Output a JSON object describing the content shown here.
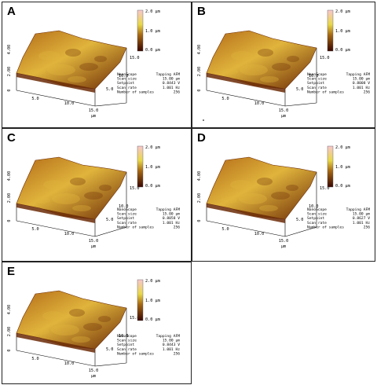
{
  "figure": {
    "panels": [
      {
        "label": "A",
        "colorbar_ticks": [
          "2.0 µm",
          "1.0 µm",
          "0.0 µm"
        ],
        "z_ticks": [
          "4.00",
          "2.00",
          "0"
        ],
        "y_ticks": [
          "15.0",
          "10.0",
          "5.0"
        ],
        "x_ticks": [
          "5.0",
          "10.0",
          "15.0"
        ],
        "x_unit": "µm",
        "info_left": [
          "NanoScope",
          "Scan size",
          "Setpoint",
          "Scan rate",
          "Number of samples"
        ],
        "info_right": [
          "Tapping AFM",
          "15.00 µm",
          "0.8443 V",
          "1.001 Hz",
          "256"
        ]
      },
      {
        "label": "B",
        "colorbar_ticks": [
          "2.0 µm",
          "1.0 µm",
          "0.0 µm"
        ],
        "z_ticks": [
          "4.00",
          "2.00",
          "0"
        ],
        "y_ticks": [
          "15.0",
          "10.0",
          "5.0"
        ],
        "x_ticks": [
          "5.0",
          "10.0",
          "15.0"
        ],
        "x_unit": "µm",
        "info_left": [
          "NanoScope",
          "Scan size",
          "Setpoint",
          "Scan rate",
          "Number of samples"
        ],
        "info_right": [
          "Tapping AFM",
          "15.00 µm",
          "0.8008 V",
          "1.001 Hz",
          "256"
        ]
      },
      {
        "label": "C",
        "colorbar_ticks": [
          "2.0 µm",
          "1.0 µm",
          "0.0 µm"
        ],
        "z_ticks": [
          "4.00",
          "2.00",
          "0"
        ],
        "y_ticks": [
          "15.0",
          "10.0",
          "5.0"
        ],
        "x_ticks": [
          "5.0",
          "10.0",
          "15.0"
        ],
        "x_unit": "µm",
        "info_left": [
          "NanoScope",
          "Scan size",
          "Setpoint",
          "Scan rate",
          "Number of samples"
        ],
        "info_right": [
          "Tapping AFM",
          "15.00 µm",
          "0.8058 V",
          "1.001 Hz",
          "256"
        ]
      },
      {
        "label": "D",
        "colorbar_ticks": [
          "2.0 µm",
          "1.0 µm",
          "0.0 µm"
        ],
        "z_ticks": [
          "4.00",
          "2.00",
          "0"
        ],
        "y_ticks": [
          "15.0",
          "10.0",
          "5.0"
        ],
        "x_ticks": [
          "5.0",
          "10.0",
          "15.0"
        ],
        "x_unit": "µm",
        "info_left": [
          "NanoScope",
          "Scan size",
          "Setpoint",
          "Scan rate",
          "Number of samples"
        ],
        "info_right": [
          "Tapping AFM",
          "15.00 µm",
          "0.8627 V",
          "1.001 Hz",
          "256"
        ]
      },
      {
        "label": "E",
        "colorbar_ticks": [
          "2.0 µm",
          "1.0 µm",
          "0.0 µm"
        ],
        "z_ticks": [
          "4.00",
          "2.00",
          "0"
        ],
        "y_ticks": [
          "15.0",
          "10.0",
          "5.0"
        ],
        "x_ticks": [
          "5.0",
          "10.0",
          "15.0"
        ],
        "x_unit": "µm",
        "info_left": [
          "NanoScope",
          "Scan size",
          "Setpoint",
          "Scan rate",
          "Number of samples"
        ],
        "info_right": [
          "Tapping AFM",
          "15.00 µm",
          "0.8443 V",
          "1.001 Hz",
          "256"
        ]
      }
    ],
    "colors": {
      "colorbar_top": "#f7c6cc",
      "colorbar_mid_high": "#e8d84a",
      "colorbar_mid": "#a86a14",
      "colorbar_bottom": "#3a0600",
      "surface_dark": "#6b2a06",
      "surface_mid": "#b36a18",
      "surface_light": "#e0b43c"
    }
  }
}
